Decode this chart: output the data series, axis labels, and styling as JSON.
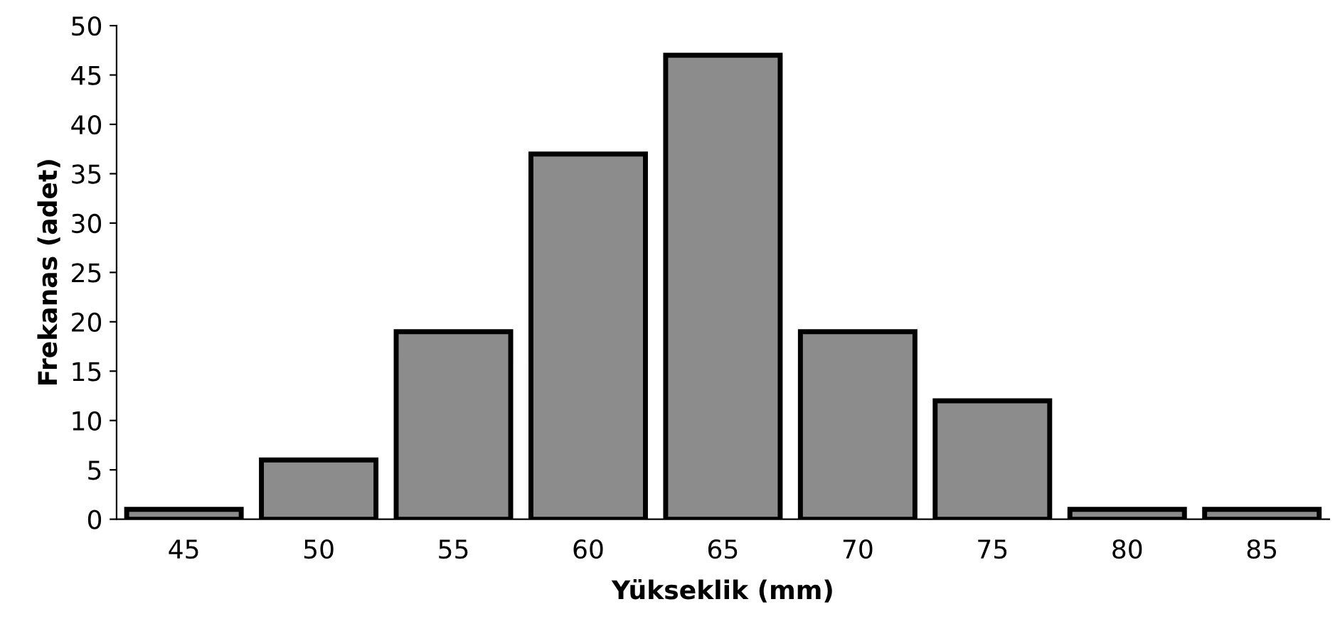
{
  "chart_data": {
    "type": "bar",
    "xlabel": "Yükseklik (mm)",
    "ylabel": "Frekanas (adet)",
    "categories": [
      "45",
      "50",
      "55",
      "60",
      "65",
      "70",
      "75",
      "80",
      "85"
    ],
    "values": [
      1,
      6,
      19,
      37,
      47,
      19,
      12,
      1,
      1
    ],
    "color": "#8c8c8c",
    "ylim": [
      0,
      50
    ],
    "yticks": [
      0,
      5,
      10,
      15,
      20,
      25,
      30,
      35,
      40,
      45,
      50
    ],
    "grid": false,
    "legend": false
  }
}
